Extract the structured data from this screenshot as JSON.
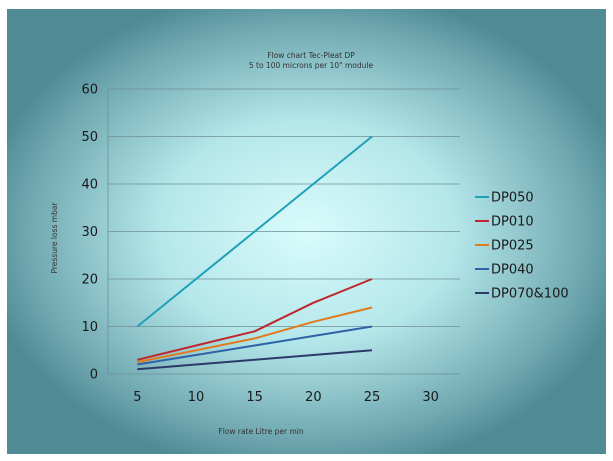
{
  "chart_data": {
    "type": "line",
    "title": "Flow chart Tec-Pleat DP",
    "subtitle": "5 to 100 microns per 10\" module",
    "xlabel": "Flow rate Litre per min",
    "ylabel": "Pressure loss mbar",
    "xlim": [
      2.5,
      32.5
    ],
    "ylim": [
      0,
      60
    ],
    "xticks": [
      5,
      10,
      15,
      20,
      25,
      30
    ],
    "yticks": [
      0,
      10,
      20,
      30,
      40,
      50,
      60
    ],
    "grid": "horizontal",
    "legend_position": "right",
    "x": [
      5,
      10,
      15,
      20,
      25
    ],
    "series": [
      {
        "name": "DP050",
        "color": "#1f9fb8",
        "values": [
          10,
          20,
          30,
          40,
          50
        ]
      },
      {
        "name": "DP010",
        "color": "#c0262d",
        "values": [
          3,
          6,
          9,
          15,
          20
        ]
      },
      {
        "name": "DP025",
        "color": "#e27a1c",
        "values": [
          2.5,
          5,
          7.5,
          11,
          14
        ]
      },
      {
        "name": "DP040",
        "color": "#2f63a8",
        "values": [
          2,
          4,
          6,
          8,
          10
        ]
      },
      {
        "name": "DP070&100",
        "color": "#2b3a6b",
        "values": [
          1,
          2,
          3,
          4,
          5
        ]
      }
    ]
  }
}
